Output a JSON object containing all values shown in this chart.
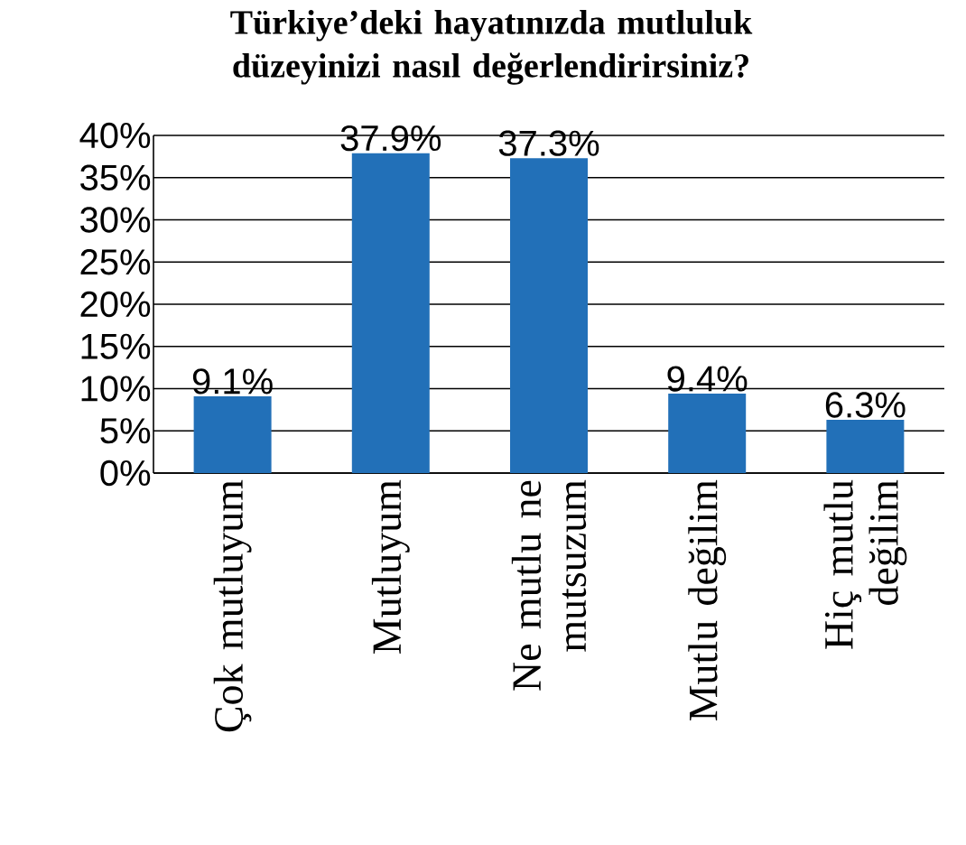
{
  "chart_data": {
    "type": "bar",
    "title": "Türkiye’deki hayatınızda mutluluk düzeyinizi nasıl değerlendirirsiniz?",
    "categories": [
      "Çok mutluyum",
      "Mutluyum",
      "Ne mutlu ne mutsuzum",
      "Mutlu değilim",
      "Hiç mutlu değilim"
    ],
    "values": [
      9.1,
      37.9,
      37.3,
      9.4,
      6.3
    ],
    "value_labels": [
      "9.1%",
      "37.9%",
      "37.3%",
      "9.4%",
      "6.3%"
    ],
    "color": "#2270b8",
    "ylim": [
      0,
      40
    ],
    "yticks": [
      {
        "value": 0,
        "label": "0%"
      },
      {
        "value": 5,
        "label": "5%"
      },
      {
        "value": 10,
        "label": "10%"
      },
      {
        "value": 15,
        "label": "15%"
      },
      {
        "value": 20,
        "label": "20%"
      },
      {
        "value": 25,
        "label": "25%"
      },
      {
        "value": 30,
        "label": "30%"
      },
      {
        "value": 35,
        "label": "35%"
      },
      {
        "value": 40,
        "label": "40%"
      }
    ],
    "grid": "y"
  }
}
